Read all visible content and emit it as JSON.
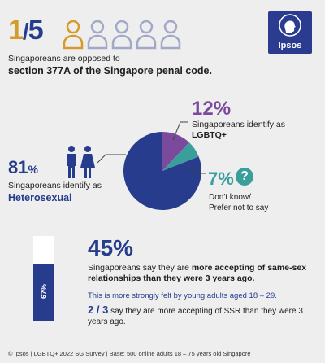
{
  "header": {
    "fraction_num": "1",
    "fraction_den": "5",
    "intro_line1": "Singaporeans are opposed to",
    "intro_line2": "section 377A of the Singapore penal code."
  },
  "logo": {
    "text": "Ipsos"
  },
  "pie_labels": {
    "lgbtq_pct": "12%",
    "lgbtq_line1": "Singaporeans identify as",
    "lgbtq_line2": "LGBTQ+",
    "dontknow_pct": "7%",
    "dontknow_line1": "Don't know/",
    "dontknow_line2": "Prefer not to say",
    "hetero_pct": "81",
    "hetero_pct_sym": "%",
    "hetero_line1": "Singaporeans identify as",
    "hetero_line2": "Heterosexual"
  },
  "acceptance": {
    "pct": "45%",
    "text_a": "Singaporeans say they are ",
    "text_b": "more accepting of same-sex relationships than they were 3 years ago.",
    "young": "This is more strongly felt by young adults aged 18 – 29.",
    "frac_num": "2",
    "frac_slash": " / ",
    "frac_den": "3",
    "frac_text": " say they are more accepting of SSR than they were 3 years ago.",
    "bar_label": "67%"
  },
  "footer": "© Ipsos | LGBTQ+ 2022 SG Survey | Base: 500 online adults 18 – 75 years old Singapore",
  "colors": {
    "navy": "#263c8d",
    "purple": "#7b4a9d",
    "teal": "#3a9e9a",
    "gold": "#d49a2a"
  },
  "icons": {
    "people": "person-outline-icon",
    "couple": "man-woman-icon",
    "question": "question-mark-icon"
  },
  "chart_data": [
    {
      "type": "pie",
      "categories": [
        "Heterosexual",
        "LGBTQ+",
        "Don't know/Prefer not to say"
      ],
      "values": [
        81,
        12,
        7
      ],
      "colors": [
        "#283c8e",
        "#7b4a9d",
        "#3a9e9a"
      ]
    },
    {
      "type": "bar",
      "categories": [
        "Young adults aged 18 – 29"
      ],
      "values": [
        67
      ],
      "ylim": [
        0,
        100
      ]
    }
  ]
}
